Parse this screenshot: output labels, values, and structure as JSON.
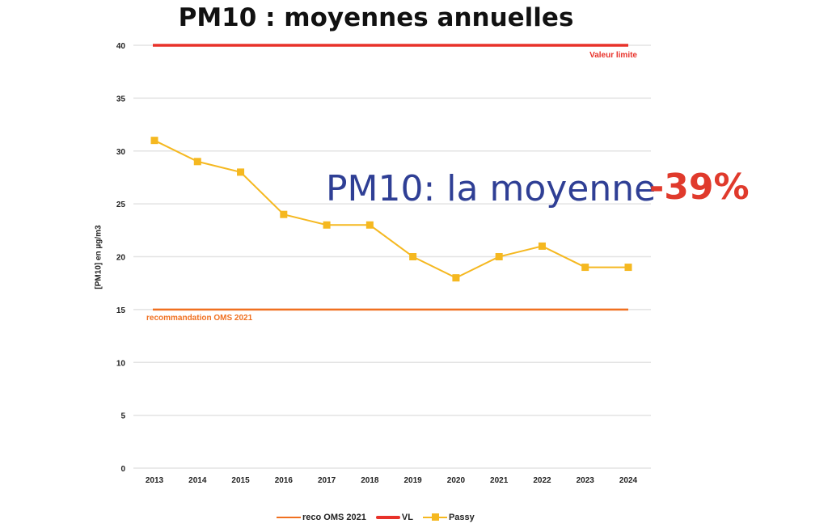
{
  "chart_data": {
    "type": "line",
    "title": "PM10 : moyennes annuelles",
    "ylabel": "[PM10] en µg/m3",
    "xlabel": "",
    "ylim": [
      0,
      40
    ],
    "yticks": [
      0,
      5,
      10,
      15,
      20,
      25,
      30,
      35,
      40
    ],
    "grid": true,
    "legend_position": "bottom",
    "categories": [
      "2013",
      "2014",
      "2015",
      "2016",
      "2017",
      "2018",
      "2019",
      "2020",
      "2021",
      "2022",
      "2023",
      "2024"
    ],
    "series": [
      {
        "name": "reco OMS 2021",
        "values": [
          15,
          15,
          15,
          15,
          15,
          15,
          15,
          15,
          15,
          15,
          15,
          15
        ],
        "color": "#f07020"
      },
      {
        "name": "VL",
        "values": [
          40,
          40,
          40,
          40,
          40,
          40,
          40,
          40,
          40,
          40,
          40,
          40
        ],
        "color": "#e8322a"
      },
      {
        "name": "Passy",
        "values": [
          31,
          29,
          28,
          24,
          23,
          23,
          20,
          18,
          20,
          21,
          19,
          19
        ],
        "color": "#f5b820"
      }
    ],
    "annotations": {
      "vl_label": "Valeur limite",
      "oms_label": "recommandation OMS 2021",
      "headline": "PM10: la moyenne",
      "headline_change": "-39%"
    }
  }
}
